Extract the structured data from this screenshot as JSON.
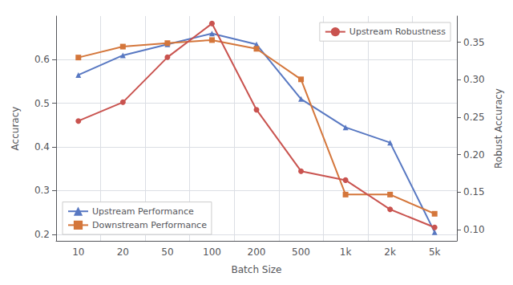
{
  "chart_data": {
    "type": "line",
    "xlabel": "Batch Size",
    "ylabel": "Accuracy",
    "y2label": "Robust Accuracy",
    "categories": [
      "10",
      "20",
      "50",
      "100",
      "200",
      "500",
      "1k",
      "2k",
      "5k"
    ],
    "series": [
      {
        "name": "Upstream Performance",
        "color": "#5878c2",
        "marker": "triangle",
        "legend": "lower left",
        "values": [
          0.565,
          0.61,
          0.635,
          0.66,
          0.635,
          0.51,
          0.445,
          0.41,
          0.205
        ]
      },
      {
        "name": "Downstream Performance",
        "color": "#d4763b",
        "marker": "square",
        "legend": "lower left",
        "values": [
          0.605,
          0.63,
          0.638,
          0.645,
          0.625,
          0.555,
          0.291,
          0.291,
          0.247
        ]
      },
      {
        "name": "Upstream Robustness",
        "color": "#c9534f",
        "marker": "circle",
        "legend": "upper right",
        "axis": "y2",
        "values": [
          0.245,
          0.27,
          0.33,
          0.375,
          0.26,
          0.178,
          0.166,
          0.127,
          0.103
        ]
      }
    ],
    "ylim": [
      0.185,
      0.7
    ],
    "yticks": [
      0.2,
      0.3,
      0.4,
      0.5,
      0.6
    ],
    "y2lim": [
      0.085,
      0.385
    ],
    "y2ticks": [
      {
        "value": 0.1,
        "label": "0.10"
      },
      0.15,
      {
        "value": 0.2,
        "label": "0.20"
      },
      0.25,
      {
        "value": 0.3,
        "label": "0.30"
      },
      0.35
    ],
    "grid": true
  }
}
